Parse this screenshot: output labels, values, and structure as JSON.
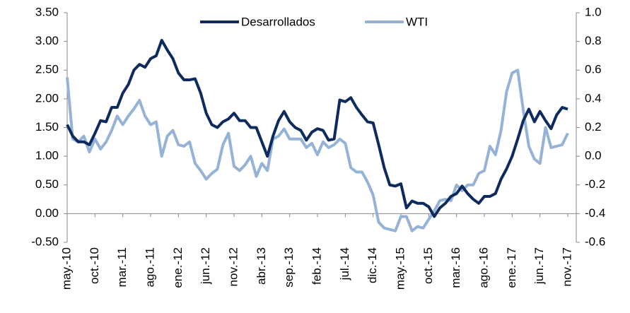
{
  "chart_data": {
    "type": "line",
    "categories": [
      "may.-10",
      null,
      null,
      null,
      null,
      "oct.-10",
      null,
      null,
      null,
      null,
      "mar.-11",
      null,
      null,
      null,
      null,
      "ago.-11",
      null,
      null,
      null,
      null,
      "ene.-12",
      null,
      null,
      null,
      null,
      "jun.-12",
      null,
      null,
      null,
      null,
      "nov.-12",
      null,
      null,
      null,
      null,
      "abr.-13",
      null,
      null,
      null,
      null,
      "sep.-13",
      null,
      null,
      null,
      null,
      "feb.-14",
      null,
      null,
      null,
      null,
      "jul.-14",
      null,
      null,
      null,
      null,
      "dic.-14",
      null,
      null,
      null,
      null,
      "may.-15",
      null,
      null,
      null,
      null,
      "oct.-15",
      null,
      null,
      null,
      null,
      "mar.-16",
      null,
      null,
      null,
      null,
      "ago.-16",
      null,
      null,
      null,
      null,
      "ene.-17",
      null,
      null,
      null,
      null,
      "jun.-17",
      null,
      null,
      null,
      null,
      "nov.-17"
    ],
    "series": [
      {
        "name": "Desarrollados",
        "color": "#0e2b5e",
        "axis": "y",
        "values": [
          1.55,
          1.35,
          1.25,
          1.25,
          1.2,
          1.4,
          1.62,
          1.6,
          1.85,
          1.85,
          2.1,
          2.25,
          2.5,
          2.6,
          2.55,
          2.7,
          2.75,
          3.02,
          2.85,
          2.7,
          2.45,
          2.33,
          2.33,
          2.35,
          2.1,
          1.75,
          1.55,
          1.5,
          1.6,
          1.65,
          1.75,
          1.62,
          1.62,
          1.5,
          1.5,
          1.25,
          1.0,
          1.35,
          1.62,
          1.78,
          1.6,
          1.5,
          1.45,
          1.28,
          1.42,
          1.48,
          1.45,
          1.28,
          1.3,
          1.98,
          1.95,
          2.02,
          1.85,
          1.72,
          1.6,
          1.58,
          1.2,
          0.8,
          0.5,
          0.48,
          0.52,
          0.1,
          0.22,
          0.18,
          0.18,
          0.12,
          -0.05,
          0.1,
          0.18,
          0.3,
          0.35,
          0.48,
          0.35,
          0.25,
          0.18,
          0.3,
          0.3,
          0.35,
          0.6,
          0.78,
          1.0,
          1.3,
          1.62,
          1.82,
          1.6,
          1.78,
          1.62,
          1.48,
          1.72,
          1.85,
          1.82
        ]
      },
      {
        "name": "WTI",
        "color": "#95b3d7",
        "axis": "y2",
        "values": [
          0.55,
          0.12,
          0.1,
          0.14,
          0.03,
          0.12,
          0.05,
          0.1,
          0.18,
          0.28,
          0.22,
          0.28,
          0.33,
          0.39,
          0.28,
          0.22,
          0.24,
          0.0,
          0.14,
          0.18,
          0.08,
          0.07,
          0.1,
          -0.05,
          -0.1,
          -0.16,
          -0.12,
          -0.09,
          0.08,
          0.16,
          -0.07,
          -0.1,
          -0.06,
          0.0,
          -0.14,
          -0.05,
          -0.1,
          0.12,
          0.14,
          0.19,
          0.12,
          0.12,
          0.12,
          0.06,
          0.09,
          0.01,
          0.1,
          0.06,
          0.08,
          0.12,
          0.09,
          -0.08,
          -0.11,
          -0.11,
          -0.18,
          -0.27,
          -0.46,
          -0.5,
          -0.51,
          -0.52,
          -0.42,
          -0.42,
          -0.52,
          -0.49,
          -0.5,
          -0.44,
          -0.38,
          -0.31,
          -0.3,
          -0.31,
          -0.2,
          -0.24,
          -0.2,
          -0.2,
          -0.12,
          -0.1,
          0.07,
          0.01,
          0.18,
          0.45,
          0.58,
          0.6,
          0.32,
          0.07,
          -0.02,
          -0.05,
          0.2,
          0.06,
          0.07,
          0.08,
          0.16
        ]
      }
    ],
    "ylim": [
      -0.5,
      3.5
    ],
    "yticks": [
      {
        "value": -0.5,
        "label": "-0.50"
      },
      {
        "value": 0,
        "label": "0.00"
      },
      {
        "value": 0.5,
        "label": "0.50"
      },
      {
        "value": 1,
        "label": "1.00"
      },
      {
        "value": 1.5,
        "label": "1.50"
      },
      {
        "value": 2,
        "label": "2.00"
      },
      {
        "value": 2.5,
        "label": "2.50"
      },
      {
        "value": 3,
        "label": "3.00"
      },
      {
        "value": 3.5,
        "label": "3.50"
      }
    ],
    "y2lim": [
      -0.6,
      1.0
    ],
    "y2ticks": [
      -0.6,
      -0.4,
      -0.2,
      {
        "value": 0,
        "label": "0.0"
      },
      0.2,
      0.4,
      0.6,
      0.8,
      {
        "value": 1,
        "label": "1.0"
      }
    ],
    "grid": false,
    "legend": "top"
  }
}
